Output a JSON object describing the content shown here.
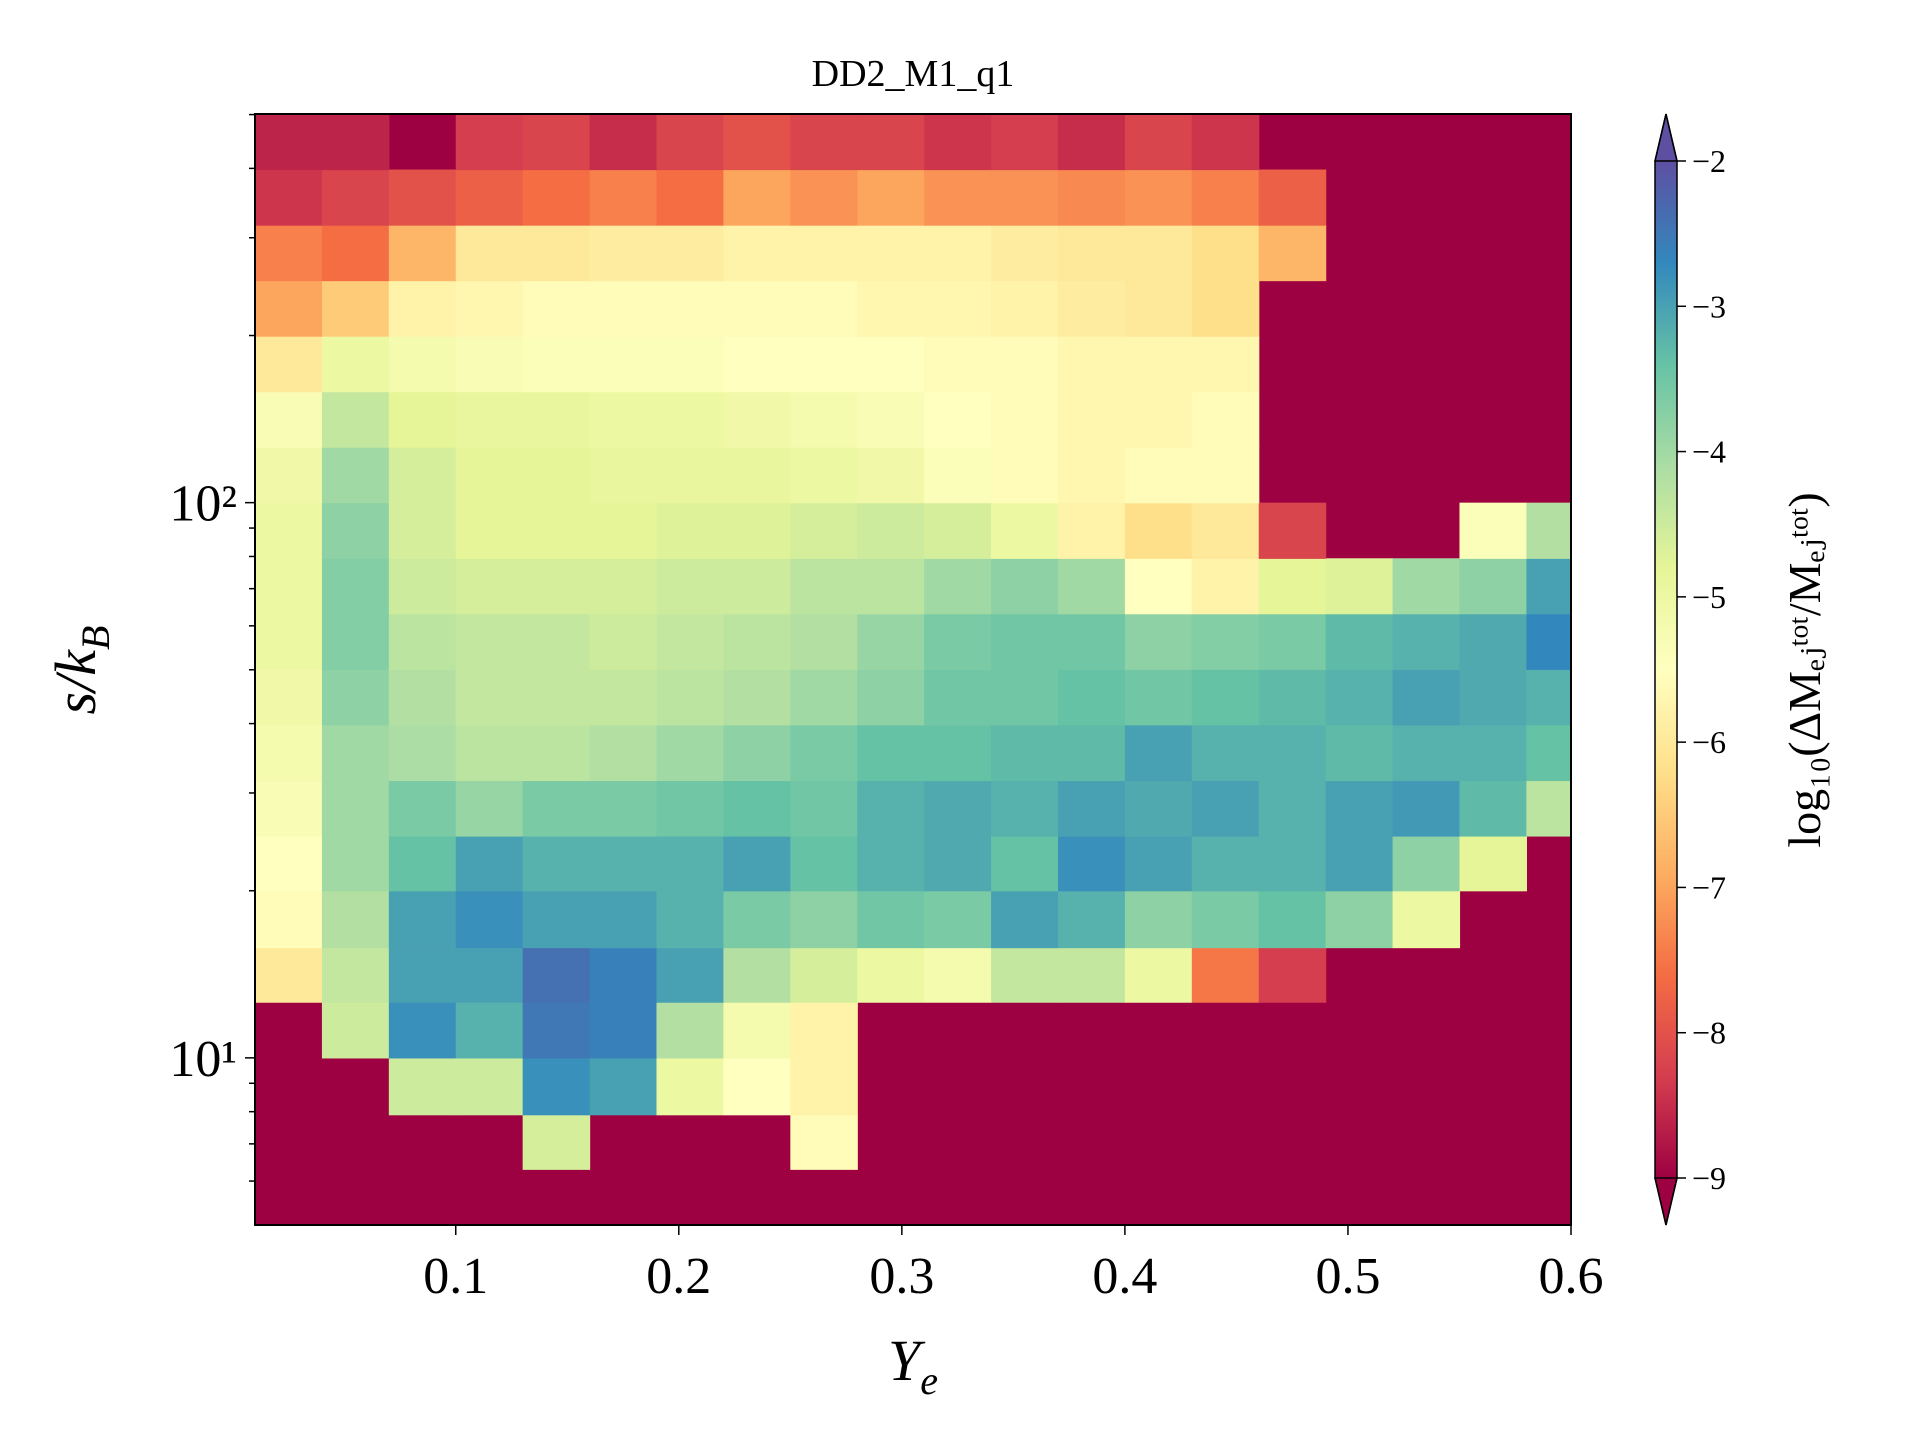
{
  "chart_data": {
    "type": "heatmap",
    "title": "DD2_M1_q1",
    "x_label": [
      "Y",
      "e"
    ],
    "y_label": [
      "s/k",
      "B"
    ],
    "colorbar_label": "log₁₀(ΔMₑⱼᵗᵒᵗ/Mₑⱼᵗᵒᵗ)",
    "xlim": [
      0.01,
      0.6
    ],
    "ylim": [
      5,
      501.2
    ],
    "log_y": true,
    "xticks": [
      0.1,
      0.2,
      0.3,
      0.4,
      0.5,
      0.6
    ],
    "yticks": [
      {
        "value": 10,
        "label": "10¹"
      },
      {
        "value": 100,
        "label": "10²"
      }
    ],
    "yticks_minor": [
      6,
      7,
      8,
      9,
      20,
      30,
      40,
      50,
      60,
      70,
      80,
      90,
      200,
      300,
      400,
      500
    ],
    "cmap": "Spectral",
    "clim": [
      -9,
      -2
    ],
    "extend": "both",
    "cticks": [
      {
        "value": -9,
        "label": "−9"
      },
      {
        "value": -8,
        "label": "−8"
      },
      {
        "value": -7,
        "label": "−7"
      },
      {
        "value": -6,
        "label": "−6"
      },
      {
        "value": -5,
        "label": "−5"
      },
      {
        "value": -4,
        "label": "−4"
      },
      {
        "value": -3,
        "label": "−3"
      },
      {
        "value": -2,
        "label": "−2"
      }
    ],
    "x_edges": [
      0.01,
      0.04,
      0.07,
      0.1,
      0.13,
      0.16,
      0.19,
      0.22,
      0.25,
      0.28,
      0.31,
      0.34,
      0.37,
      0.4,
      0.43,
      0.46,
      0.49,
      0.52,
      0.55,
      0.58,
      0.6
    ],
    "y_edges": [
      5,
      6.3,
      7.9,
      10,
      12.6,
      15.8,
      20,
      25.1,
      31.6,
      39.8,
      50.1,
      63.1,
      79.4,
      100,
      125.9,
      158.5,
      199.5,
      251.2,
      316.2,
      398.1,
      501.2
    ],
    "z": [
      [
        null,
        null,
        null,
        null,
        null,
        null,
        null,
        null,
        null,
        null,
        null,
        null,
        null,
        null,
        null,
        null,
        null,
        null,
        null,
        null
      ],
      [
        null,
        null,
        null,
        null,
        -4.6,
        null,
        null,
        null,
        -5.6,
        null,
        null,
        null,
        null,
        null,
        null,
        null,
        null,
        null,
        null,
        null
      ],
      [
        null,
        null,
        -4.5,
        -4.5,
        -2.8,
        -3.0,
        -5.0,
        -5.5,
        -5.8,
        null,
        null,
        null,
        null,
        null,
        null,
        null,
        null,
        null,
        null,
        null
      ],
      [
        null,
        -4.5,
        -2.8,
        -3.2,
        -2.5,
        -2.6,
        -4.2,
        -5.2,
        -5.8,
        null,
        null,
        null,
        null,
        null,
        null,
        null,
        null,
        null,
        null,
        null
      ],
      [
        -6.0,
        -4.4,
        -3.0,
        -3.0,
        -2.4,
        -2.6,
        -3.0,
        -4.2,
        -4.6,
        -5.0,
        -5.2,
        -4.4,
        -4.4,
        -5.0,
        -7.5,
        -8.3,
        null,
        null,
        null,
        null
      ],
      [
        -5.6,
        -4.2,
        -3.0,
        -2.8,
        -3.0,
        -3.0,
        -3.2,
        -3.6,
        -3.8,
        -3.5,
        -3.6,
        -3.0,
        -3.2,
        -3.8,
        -3.6,
        -3.4,
        -3.8,
        -5.0,
        null,
        null
      ],
      [
        -5.5,
        -4.0,
        -3.4,
        -3.0,
        -3.2,
        -3.2,
        -3.2,
        -3.0,
        -3.4,
        -3.2,
        -3.1,
        -3.4,
        -2.8,
        -3.0,
        -3.2,
        -3.2,
        -3.0,
        -3.8,
        -4.8,
        null
      ],
      [
        -5.3,
        -4.0,
        -3.6,
        -3.9,
        -3.6,
        -3.6,
        -3.5,
        -3.4,
        -3.5,
        -3.2,
        -3.1,
        -3.2,
        -3.0,
        -3.1,
        -3.0,
        -3.2,
        -3.0,
        -2.9,
        -3.3,
        -4.3
      ],
      [
        -5.2,
        -4.0,
        -4.1,
        -4.3,
        -4.3,
        -4.2,
        -4.0,
        -3.8,
        -3.6,
        -3.4,
        -3.4,
        -3.3,
        -3.3,
        -3.0,
        -3.2,
        -3.2,
        -3.3,
        -3.2,
        -3.2,
        -3.4
      ],
      [
        -5.1,
        -3.8,
        -4.2,
        -4.4,
        -4.4,
        -4.4,
        -4.3,
        -4.2,
        -4.0,
        -3.8,
        -3.5,
        -3.5,
        -3.4,
        -3.5,
        -3.4,
        -3.3,
        -3.2,
        -3.0,
        -3.1,
        -3.2
      ],
      [
        -5.0,
        -3.7,
        -4.3,
        -4.4,
        -4.4,
        -4.5,
        -4.4,
        -4.3,
        -4.2,
        -3.9,
        -3.6,
        -3.5,
        -3.5,
        -3.8,
        -3.7,
        -3.6,
        -3.3,
        -3.2,
        -3.1,
        -2.7
      ],
      [
        -5.0,
        -3.7,
        -4.5,
        -4.6,
        -4.6,
        -4.6,
        -4.5,
        -4.5,
        -4.3,
        -4.3,
        -4.0,
        -3.8,
        -4.0,
        -5.5,
        -5.8,
        -4.8,
        -4.7,
        -4.0,
        -3.8,
        -3.0
      ],
      [
        -5.0,
        -3.8,
        -4.6,
        -4.8,
        -4.8,
        -4.8,
        -4.7,
        -4.7,
        -4.6,
        -4.5,
        -4.6,
        -5.0,
        -5.8,
        -6.2,
        -6.0,
        -8.2,
        null,
        null,
        -5.4,
        -4.2
      ],
      [
        -5.1,
        -4.0,
        -4.6,
        -4.8,
        -4.8,
        -4.9,
        -4.9,
        -4.9,
        -5.0,
        -5.1,
        -5.4,
        -5.6,
        -5.7,
        -5.6,
        -5.6,
        null,
        null,
        null,
        null,
        null
      ],
      [
        -5.3,
        -4.4,
        -4.8,
        -4.9,
        -4.9,
        -5.0,
        -5.0,
        -5.1,
        -5.2,
        -5.3,
        -5.5,
        -5.6,
        -5.7,
        -5.7,
        -5.6,
        null,
        null,
        null,
        null,
        null
      ],
      [
        -6.0,
        -5.0,
        -5.2,
        -5.3,
        -5.4,
        -5.4,
        -5.4,
        -5.5,
        -5.5,
        -5.5,
        -5.6,
        -5.6,
        -5.7,
        -5.7,
        -5.7,
        null,
        null,
        null,
        null,
        null
      ],
      [
        -7.0,
        -6.5,
        -5.8,
        -5.7,
        -5.6,
        -5.6,
        -5.6,
        -5.6,
        -5.6,
        -5.7,
        -5.7,
        -5.8,
        -5.9,
        -6.0,
        -6.2,
        null,
        null,
        null,
        null,
        null
      ],
      [
        -7.4,
        -7.6,
        -6.8,
        -6.0,
        -6.0,
        -5.9,
        -5.9,
        -5.8,
        -5.8,
        -5.8,
        -5.8,
        -5.9,
        -6.0,
        -6.0,
        -6.2,
        -6.8,
        null,
        null,
        null,
        null
      ],
      [
        -8.4,
        -8.2,
        -8.0,
        -7.8,
        -7.6,
        -7.4,
        -7.6,
        -7.0,
        -7.2,
        -7.0,
        -7.2,
        -7.2,
        -7.3,
        -7.2,
        -7.4,
        -7.8,
        null,
        null,
        null,
        null
      ],
      [
        -8.6,
        -8.6,
        null,
        -8.3,
        -8.2,
        -8.5,
        -8.2,
        -8.0,
        -8.2,
        -8.2,
        -8.4,
        -8.3,
        -8.5,
        -8.2,
        -8.4,
        null,
        null,
        null,
        null,
        null
      ]
    ]
  }
}
